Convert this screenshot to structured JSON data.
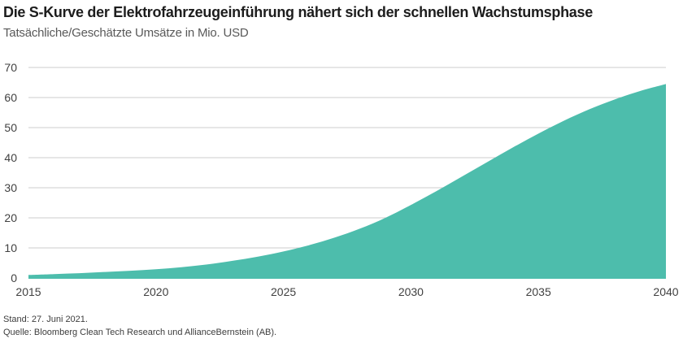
{
  "header": {
    "title": "Die S-Kurve der Elektrofahrzeugeinführung nähert sich der schnellen Wachstumsphase",
    "subtitle": "Tatsächliche/Geschätzte Umsätze in Mio. USD"
  },
  "chart_data": {
    "type": "area",
    "title": "Die S-Kurve der Elektrofahrzeugeinführung nähert sich der schnellen Wachstumsphase",
    "subtitle": "Tatsächliche/Geschätzte Umsätze in Mio. USD",
    "xlabel": "",
    "ylabel": "Umsätze in Mio. USD",
    "x": [
      2015,
      2016,
      2017,
      2018,
      2019,
      2020,
      2021,
      2022,
      2023,
      2024,
      2025,
      2026,
      2027,
      2028,
      2029,
      2030,
      2031,
      2032,
      2033,
      2034,
      2035,
      2036,
      2037,
      2038,
      2039,
      2040
    ],
    "values": [
      1.0,
      1.3,
      1.6,
      2.0,
      2.4,
      2.9,
      3.6,
      4.5,
      5.7,
      7.1,
      8.8,
      10.9,
      13.4,
      16.4,
      20.0,
      24.3,
      28.9,
      33.7,
      38.6,
      43.4,
      48.0,
      52.3,
      56.1,
      59.4,
      62.2,
      64.5
    ],
    "xlim": [
      2015,
      2040
    ],
    "ylim": [
      0,
      70
    ],
    "xticks": [
      2015,
      2020,
      2025,
      2030,
      2035,
      2040
    ],
    "yticks": [
      0,
      10,
      20,
      30,
      40,
      50,
      60,
      70
    ],
    "grid": "horizontal",
    "legend": "none",
    "colors": {
      "area_fill": "#4DBDAC",
      "gridline": "#CCCCCC",
      "tick_label": "#414141"
    }
  },
  "footer": {
    "as_of": "Stand: 27. Juni 2021.",
    "source": "Quelle: Bloomberg Clean Tech Research und AllianceBernstein (AB)."
  }
}
